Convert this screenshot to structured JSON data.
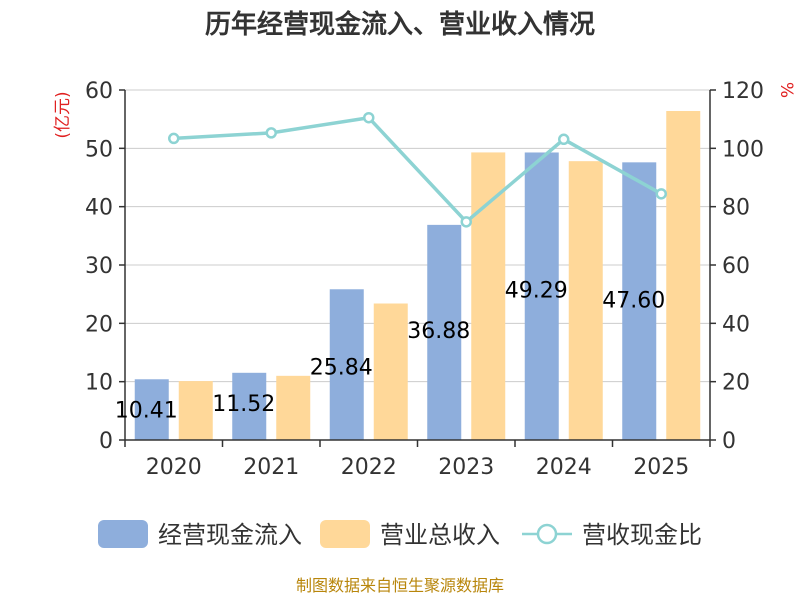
{
  "chart_data": {
    "type": "bar",
    "title": "历年经营现金流入、营业收入情况",
    "categories": [
      "2020",
      "2021",
      "2022",
      "2023",
      "2024",
      "2025"
    ],
    "series": [
      {
        "name": "经营现金流入",
        "type": "bar",
        "axis": "left",
        "color": "#8eaedc",
        "values": [
          10.41,
          11.52,
          25.84,
          36.88,
          49.29,
          47.6
        ],
        "labels": [
          "10.41",
          "11.52",
          "25.84",
          "36.88",
          "49.29",
          "47.60"
        ]
      },
      {
        "name": "营业总收入",
        "type": "bar",
        "axis": "left",
        "color": "#ffd899",
        "values": [
          10.1,
          11.0,
          23.4,
          49.3,
          47.8,
          56.4
        ]
      },
      {
        "name": "营收现金比",
        "type": "line",
        "axis": "right",
        "color": "#8dd3d3",
        "values": [
          103.4,
          105.3,
          110.5,
          74.8,
          103.1,
          84.4
        ]
      }
    ],
    "left_axis": {
      "label": "(亿元)",
      "min": 0,
      "max": 60,
      "ticks": [
        "0",
        "10",
        "20",
        "30",
        "40",
        "50",
        "60"
      ]
    },
    "right_axis": {
      "label": "%",
      "min": 0,
      "max": 120,
      "ticks": [
        "0",
        "20",
        "40",
        "60",
        "80",
        "100",
        "120"
      ]
    },
    "grid": true,
    "legend_position": "bottom"
  },
  "source_text": "制图数据来自恒生聚源数据库"
}
